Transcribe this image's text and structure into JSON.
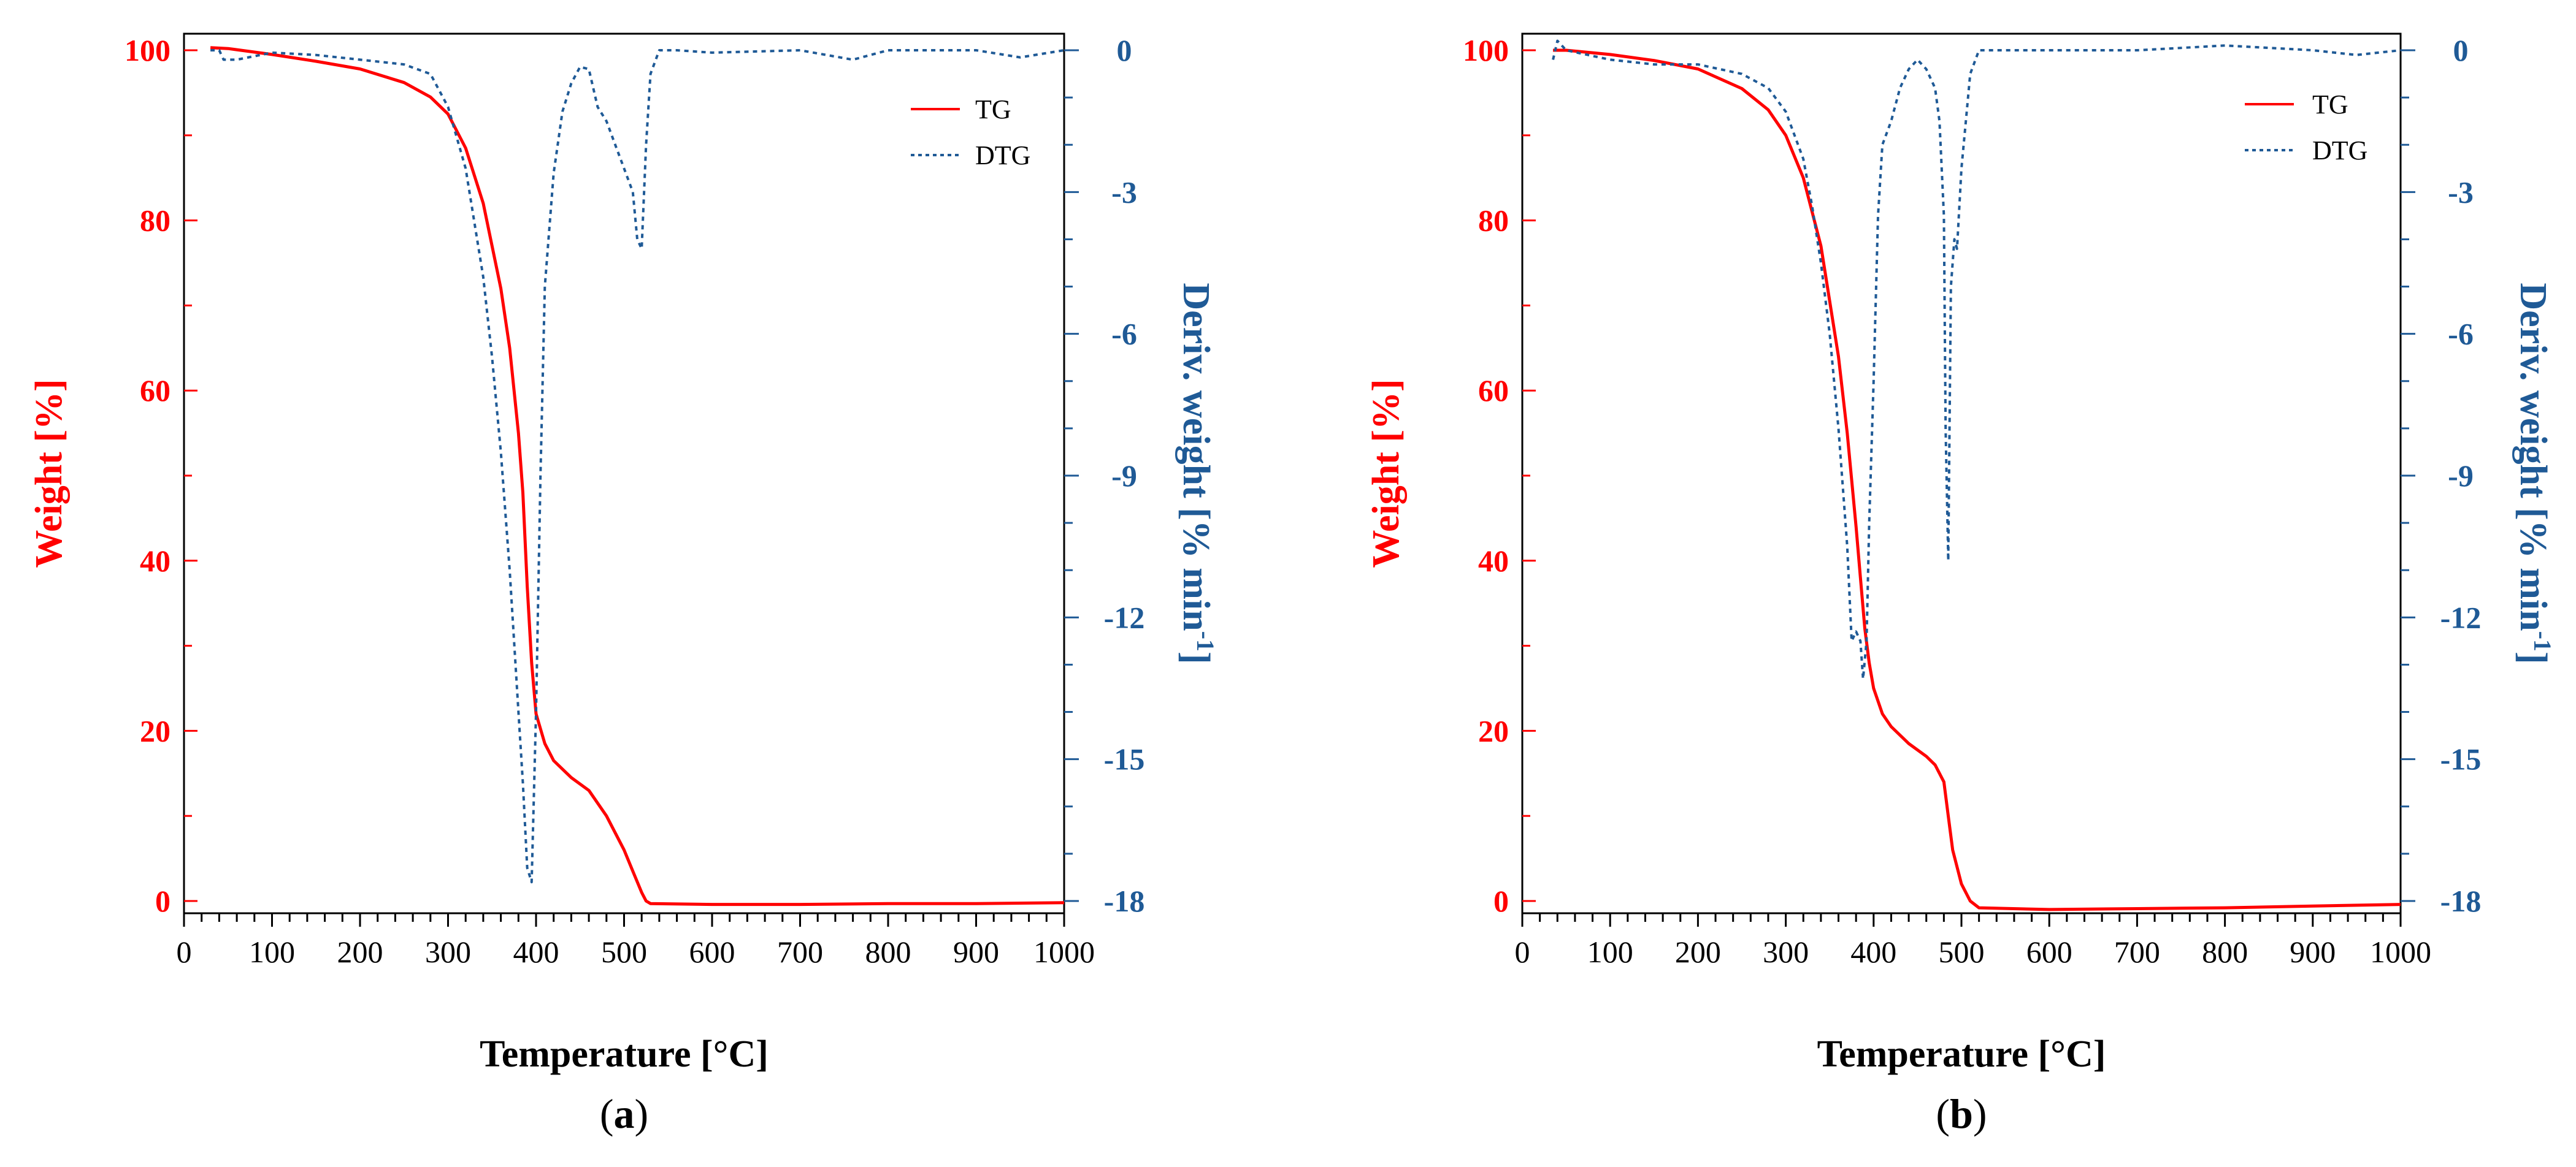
{
  "colors": {
    "tg": "#ff0000",
    "dtg": "#1f5a96",
    "axis": "#000000"
  },
  "chart_data": [
    {
      "type": "line",
      "panel_label": "a",
      "xlabel": "Temperature [°C]",
      "ylabel_left": "Weight [%]",
      "ylabel_right_main": "Deriv. weight [% min",
      "ylabel_right_sup": "-1",
      "ylabel_right_end": "]",
      "xlim": [
        0,
        1000
      ],
      "ylim_left": [
        -2,
        102
      ],
      "ylim_right": [
        -18,
        0.5
      ],
      "x_ticks": [
        0,
        100,
        200,
        300,
        400,
        500,
        600,
        700,
        800,
        900,
        1000
      ],
      "y_left_ticks": [
        0,
        20,
        40,
        60,
        80,
        100
      ],
      "y_right_ticks": [
        0,
        -3,
        -6,
        -9,
        -12,
        -15,
        -18
      ],
      "legend": [
        "TG",
        "DTG"
      ],
      "series": [
        {
          "name": "TG",
          "axis": "left",
          "x": [
            30,
            50,
            100,
            150,
            200,
            250,
            280,
            300,
            320,
            340,
            360,
            370,
            380,
            385,
            390,
            395,
            400,
            410,
            420,
            440,
            460,
            480,
            500,
            510,
            520,
            525,
            530,
            600,
            700,
            800,
            900,
            1000
          ],
          "y": [
            100.3,
            100.2,
            99.5,
            98.7,
            97.8,
            96.2,
            94.5,
            92.5,
            88.5,
            82,
            72,
            65,
            55,
            48,
            37,
            28,
            22,
            18.5,
            16.5,
            14.5,
            13,
            10,
            6,
            3.5,
            1,
            0,
            -0.3,
            -0.4,
            -0.4,
            -0.3,
            -0.3,
            -0.2
          ]
        },
        {
          "name": "DTG",
          "axis": "right",
          "x": [
            30,
            40,
            45,
            60,
            100,
            150,
            200,
            250,
            280,
            300,
            320,
            340,
            350,
            360,
            370,
            380,
            385,
            390,
            395,
            400,
            405,
            410,
            420,
            430,
            440,
            450,
            460,
            470,
            480,
            490,
            500,
            510,
            515,
            520,
            525,
            530,
            540,
            560,
            600,
            700,
            760,
            800,
            900,
            950,
            1000
          ],
          "y": [
            0,
            0,
            -0.2,
            -0.2,
            -0.05,
            -0.1,
            -0.2,
            -0.3,
            -0.5,
            -1.2,
            -2.5,
            -4.8,
            -6.5,
            -8.5,
            -11,
            -14,
            -15.5,
            -17.3,
            -17.6,
            -14,
            -9,
            -5,
            -2.6,
            -1.3,
            -0.7,
            -0.35,
            -0.4,
            -1.2,
            -1.5,
            -2,
            -2.5,
            -3,
            -4,
            -4.2,
            -2,
            -0.5,
            0,
            0,
            -0.05,
            0,
            -0.2,
            0,
            0,
            -0.15,
            0
          ]
        }
      ]
    },
    {
      "type": "line",
      "panel_label": "b",
      "xlabel": "Temperature [°C]",
      "ylabel_left": "Weight [%]",
      "ylabel_right_main": "Deriv. weight [% min",
      "ylabel_right_sup": "-1",
      "ylabel_right_end": "]",
      "xlim": [
        0,
        1000
      ],
      "ylim_left": [
        -2,
        102
      ],
      "ylim_right": [
        -18,
        0.5
      ],
      "x_ticks": [
        0,
        100,
        200,
        300,
        400,
        500,
        600,
        700,
        800,
        900,
        1000
      ],
      "y_left_ticks": [
        0,
        20,
        40,
        60,
        80,
        100
      ],
      "y_right_ticks": [
        0,
        -3,
        -6,
        -9,
        -12,
        -15,
        -18
      ],
      "legend": [
        "TG",
        "DTG"
      ],
      "series": [
        {
          "name": "TG",
          "axis": "left",
          "x": [
            35,
            50,
            100,
            150,
            200,
            250,
            280,
            300,
            320,
            340,
            360,
            370,
            380,
            385,
            390,
            395,
            400,
            410,
            420,
            440,
            460,
            470,
            480,
            485,
            490,
            500,
            510,
            520,
            600,
            700,
            800,
            900,
            1000
          ],
          "y": [
            100,
            100,
            99.5,
            98.8,
            97.8,
            95.5,
            93,
            90,
            85,
            77,
            64,
            55,
            44,
            38,
            32,
            28,
            25,
            22,
            20.5,
            18.5,
            17,
            16,
            14,
            10,
            6,
            2,
            0,
            -0.8,
            -1,
            -0.9,
            -0.8,
            -0.6,
            -0.4
          ]
        },
        {
          "name": "DTG",
          "axis": "right",
          "x": [
            35,
            40,
            50,
            100,
            150,
            200,
            250,
            280,
            300,
            320,
            330,
            340,
            350,
            360,
            370,
            375,
            380,
            385,
            388,
            392,
            395,
            400,
            405,
            410,
            420,
            430,
            440,
            450,
            460,
            470,
            475,
            480,
            482,
            485,
            488,
            492,
            495,
            500,
            505,
            510,
            520,
            530,
            600,
            700,
            800,
            900,
            950,
            1000
          ],
          "y": [
            -0.2,
            0.2,
            0,
            -0.2,
            -0.3,
            -0.3,
            -0.5,
            -0.8,
            -1.3,
            -2.3,
            -3.3,
            -4.5,
            -6,
            -8,
            -10.5,
            -12.5,
            -12.3,
            -12.5,
            -13.3,
            -12.5,
            -10,
            -7,
            -3.5,
            -2,
            -1.5,
            -0.8,
            -0.4,
            -0.2,
            -0.4,
            -0.8,
            -1.5,
            -3.5,
            -8,
            -10.8,
            -5,
            -4,
            -4.2,
            -2.5,
            -1.5,
            -0.5,
            0,
            0,
            0,
            0,
            0.1,
            0,
            -0.1,
            0
          ]
        }
      ]
    }
  ]
}
